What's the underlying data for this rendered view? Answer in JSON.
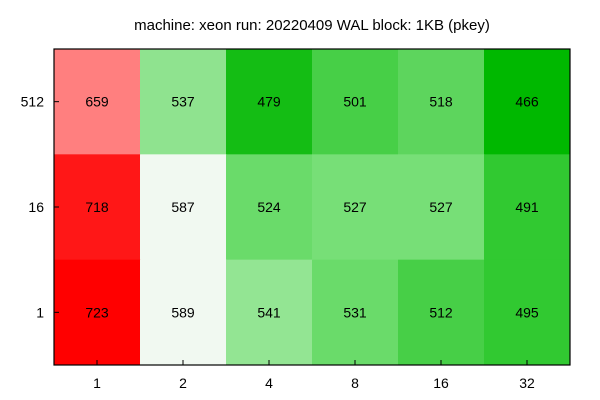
{
  "chart_data": {
    "type": "heatmap",
    "title": "machine: xeon run: 20220409 WAL block: 1KB (pkey)",
    "xlabel": "",
    "ylabel": "",
    "x_categories": [
      "1",
      "2",
      "4",
      "8",
      "16",
      "32"
    ],
    "y_categories": [
      "512",
      "16",
      "1"
    ],
    "values": [
      [
        659,
        537,
        479,
        501,
        518,
        466
      ],
      [
        718,
        587,
        524,
        527,
        527,
        491
      ],
      [
        723,
        589,
        541,
        531,
        512,
        495
      ]
    ],
    "cell_colors": [
      [
        "#ff7f7f",
        "#8fe38f",
        "#14bd14",
        "#47cf47",
        "#5dd55d",
        "#00b800"
      ],
      [
        "#ff1717",
        "#f1f9f1",
        "#6adb6a",
        "#77df77",
        "#77df77",
        "#31c931"
      ],
      [
        "#ff0000",
        "#f1f9f1",
        "#93e593",
        "#6adb6a",
        "#47cf47",
        "#31c931"
      ]
    ],
    "grid": false,
    "legend": "none"
  }
}
